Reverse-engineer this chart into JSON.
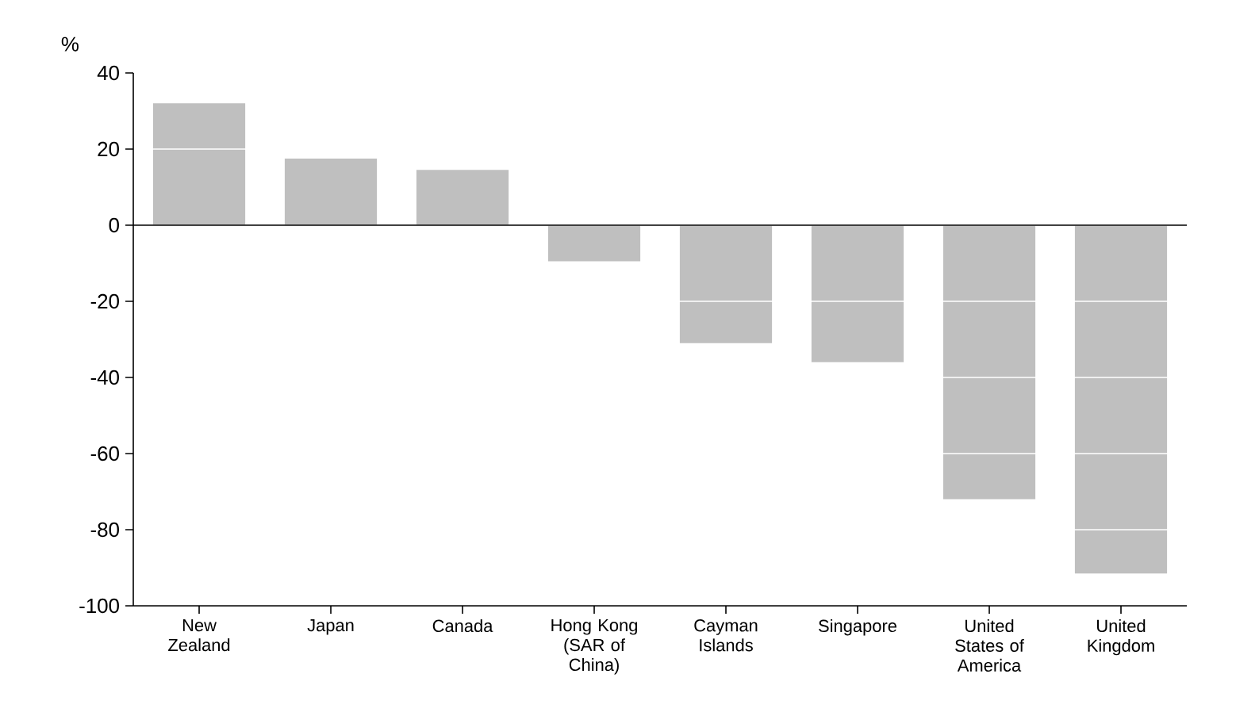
{
  "chart_data": {
    "type": "bar",
    "ylabel": "%",
    "categories": [
      "New Zealand",
      "Japan",
      "Canada",
      "Hong Kong (SAR of China)",
      "Cayman Islands",
      "Singapore",
      "United States of America",
      "United Kingdom"
    ],
    "values": [
      32,
      17.5,
      14.5,
      -9.5,
      -31,
      -36,
      -72,
      -91.5
    ],
    "color": "#bfbfbf",
    "ylim": [
      -100,
      40
    ],
    "yticks": [
      -100,
      -80,
      -60,
      -40,
      -20,
      0,
      20,
      40
    ],
    "grid": "y",
    "ref_lines": [
      {
        "axis": "y",
        "value": 0
      }
    ]
  }
}
